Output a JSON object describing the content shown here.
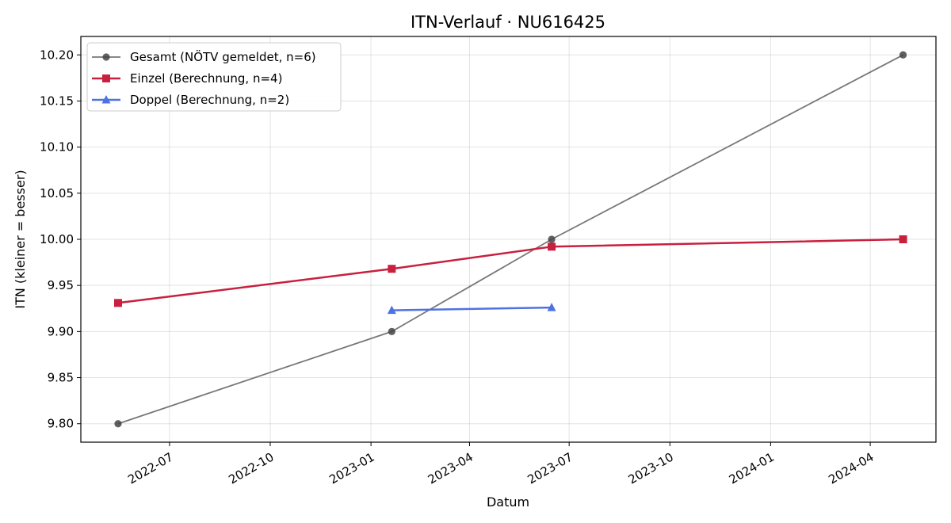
{
  "chart_data": {
    "type": "line",
    "title": "ITN-Verlauf · NU616425",
    "xlabel": "Datum",
    "ylabel": "ITN  (kleiner = besser)",
    "x_type": "date",
    "xlim": [
      "2022-04-11",
      "2024-05-31"
    ],
    "ylim": [
      9.78,
      10.22
    ],
    "x_ticks": [
      "2022-07",
      "2022-10",
      "2023-01",
      "2023-04",
      "2023-07",
      "2023-10",
      "2024-01",
      "2024-04"
    ],
    "y_ticks": [
      "9.80",
      "9.85",
      "9.90",
      "9.95",
      "10.00",
      "10.05",
      "10.10",
      "10.15",
      "10.20"
    ],
    "grid": true,
    "legend_position": "top-left",
    "series": [
      {
        "name": "Gesamt (NÖTV gemeldet, n=6)",
        "color": "#777777",
        "marker": "circle",
        "points": [
          {
            "x": "2022-05-15",
            "y": 9.8
          },
          {
            "x": "2023-01-20",
            "y": 9.9
          },
          {
            "x": "2023-06-15",
            "y": 10.0
          },
          {
            "x": "2024-05-01",
            "y": 10.2
          }
        ]
      },
      {
        "name": "Einzel (Berechnung, n=4)",
        "color": "#c8203f",
        "marker": "square",
        "points": [
          {
            "x": "2022-05-15",
            "y": 9.931
          },
          {
            "x": "2023-01-20",
            "y": 9.968
          },
          {
            "x": "2023-06-15",
            "y": 9.992
          },
          {
            "x": "2024-05-01",
            "y": 10.0
          }
        ]
      },
      {
        "name": "Doppel (Berechnung, n=2)",
        "color": "#4f72e3",
        "marker": "triangle",
        "points": [
          {
            "x": "2023-01-20",
            "y": 9.923
          },
          {
            "x": "2023-06-15",
            "y": 9.926
          }
        ]
      }
    ]
  }
}
